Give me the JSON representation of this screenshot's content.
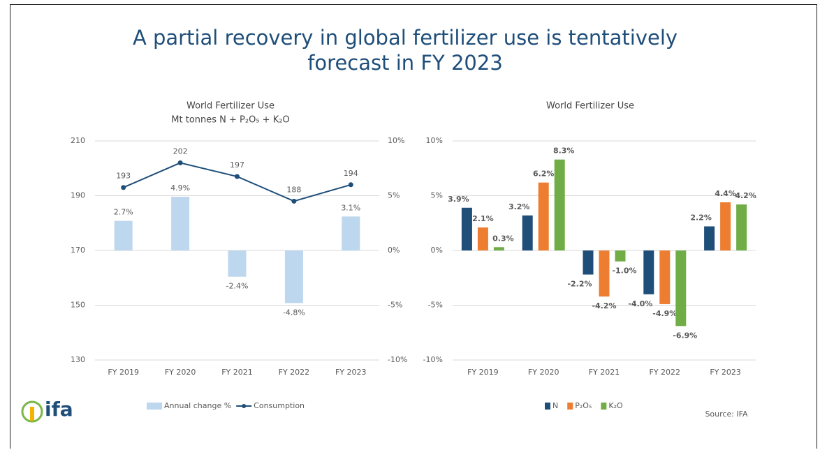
{
  "title": "A partial recovery in global fertilizer use is tentatively forecast in FY 2023",
  "source": "Source: IFA",
  "logo": "ifa",
  "chart_data": [
    {
      "type": "combo",
      "title": "World Fertilizer Use",
      "subtitle": "Mt tonnes N + P₂O₅ + K₂O",
      "categories": [
        "FY 2019",
        "FY 2020",
        "FY 2021",
        "FY 2022",
        "FY 2023"
      ],
      "series": [
        {
          "name": "Annual change %",
          "type": "bar",
          "axis": "y2",
          "color": "#bdd7ee",
          "values": [
            2.7,
            4.9,
            -2.4,
            -4.8,
            3.1
          ],
          "value_labels": [
            "2.7%",
            "4.9%",
            "-2.4%",
            "-4.8%",
            "3.1%"
          ]
        },
        {
          "name": "Consumption",
          "type": "line",
          "axis": "y",
          "color": "#1f4e79",
          "values": [
            193,
            202,
            197,
            188,
            194
          ]
        }
      ],
      "ylim": [
        130,
        210
      ],
      "yticks": [
        130,
        150,
        170,
        190,
        210
      ],
      "y2lim": [
        -10,
        10
      ],
      "y2ticks": [
        {
          "value": -10,
          "label": "-10%"
        },
        {
          "value": -5,
          "label": "-5%"
        },
        {
          "value": 0,
          "label": "0%"
        },
        {
          "value": 5,
          "label": "5%"
        },
        {
          "value": 10,
          "label": "10%"
        }
      ],
      "grid": true,
      "legend": "bottom"
    },
    {
      "type": "bar",
      "title": "World Fertilizer Use",
      "categories": [
        "FY 2019",
        "FY 2020",
        "FY 2021",
        "FY 2022",
        "FY 2023"
      ],
      "series": [
        {
          "name": "N",
          "color": "#1f4e79",
          "values": [
            3.9,
            3.2,
            -2.2,
            -4.0,
            2.2
          ],
          "value_labels": [
            "3.9%",
            "3.2%",
            "-2.2%",
            "-4.0%",
            "2.2%"
          ]
        },
        {
          "name": "P₂O₅",
          "color": "#ed7d31",
          "values": [
            2.1,
            6.2,
            -4.2,
            -4.9,
            4.4
          ],
          "value_labels": [
            "2.1%",
            "6.2%",
            "-4.2%",
            "-4.9%",
            "4.4%"
          ]
        },
        {
          "name": "K₂O",
          "color": "#70ad47",
          "values": [
            0.3,
            8.3,
            -1.0,
            -6.9,
            4.2
          ],
          "value_labels": [
            "0.3%",
            "8.3%",
            "-1.0%",
            "-6.9%",
            "4.2%"
          ]
        }
      ],
      "ylim": [
        -10,
        10
      ],
      "yticks": [
        {
          "value": -10,
          "label": "-10%"
        },
        {
          "value": -5,
          "label": "-5%"
        },
        {
          "value": 0,
          "label": "0%"
        },
        {
          "value": 5,
          "label": "5%"
        },
        {
          "value": 10,
          "label": "10%"
        }
      ],
      "grid": true,
      "legend": "bottom"
    }
  ]
}
